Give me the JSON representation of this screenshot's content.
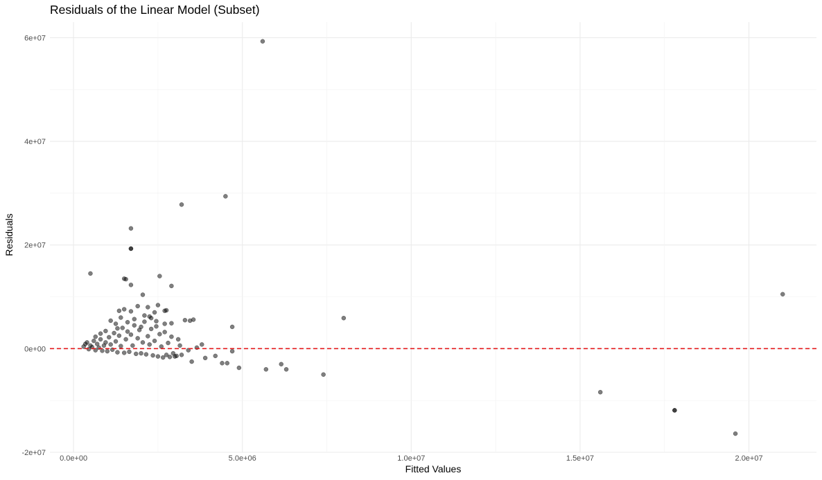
{
  "chart_data": {
    "type": "scatter",
    "title": "Residuals of the Linear Model (Subset)",
    "xlabel": "Fitted Values",
    "ylabel": "Residuals",
    "xlim": [
      -700000,
      22000000
    ],
    "ylim": [
      -20000000,
      63000000
    ],
    "x_ticks": [
      {
        "value": 0,
        "label": "0.0e+00"
      },
      {
        "value": 5000000,
        "label": "5.0e+06"
      },
      {
        "value": 10000000,
        "label": "1.0e+07"
      },
      {
        "value": 15000000,
        "label": "1.5e+07"
      },
      {
        "value": 20000000,
        "label": "2.0e+07"
      }
    ],
    "y_ticks": [
      {
        "value": -20000000,
        "label": "-2e+07"
      },
      {
        "value": 0,
        "label": "0e+00"
      },
      {
        "value": 20000000,
        "label": "2e+07"
      },
      {
        "value": 40000000,
        "label": "4e+07"
      },
      {
        "value": 60000000,
        "label": "6e+07"
      }
    ],
    "grid": true,
    "reference_line": {
      "y": 0,
      "style": "dashed",
      "color": "#e41a1c"
    },
    "point_color": "#000000",
    "point_opacity": 0.5,
    "points": [
      [
        5600000,
        59300000
      ],
      [
        4500000,
        29400000
      ],
      [
        3200000,
        27800000
      ],
      [
        1700000,
        23200000
      ],
      [
        1700000,
        19300000
      ],
      [
        1700000,
        19300000
      ],
      [
        500000,
        14500000
      ],
      [
        1500000,
        13500000
      ],
      [
        1550000,
        13400000
      ],
      [
        2550000,
        14000000
      ],
      [
        1700000,
        12300000
      ],
      [
        2900000,
        12100000
      ],
      [
        21000000,
        10500000
      ],
      [
        2050000,
        10400000
      ],
      [
        8000000,
        5900000
      ],
      [
        4700000,
        4200000
      ],
      [
        3300000,
        5500000
      ],
      [
        3450000,
        5400000
      ],
      [
        3550000,
        5600000
      ],
      [
        2750000,
        7400000
      ],
      [
        2700000,
        7300000
      ],
      [
        2500000,
        8400000
      ],
      [
        2200000,
        8000000
      ],
      [
        1900000,
        8200000
      ],
      [
        1350000,
        7300000
      ],
      [
        1500000,
        7600000
      ],
      [
        2400000,
        7000000
      ],
      [
        2100000,
        6400000
      ],
      [
        2300000,
        5900000
      ],
      [
        1700000,
        7200000
      ],
      [
        2700000,
        4800000
      ],
      [
        2900000,
        4900000
      ],
      [
        3100000,
        1800000
      ],
      [
        3800000,
        800000
      ],
      [
        3650000,
        200000
      ],
      [
        3400000,
        -300000
      ],
      [
        3500000,
        -2500000
      ],
      [
        3000000,
        -1500000
      ],
      [
        3200000,
        -1200000
      ],
      [
        3900000,
        -1800000
      ],
      [
        4200000,
        -1400000
      ],
      [
        4400000,
        -2800000
      ],
      [
        4550000,
        -2800000
      ],
      [
        4700000,
        -500000
      ],
      [
        4900000,
        -3700000
      ],
      [
        5700000,
        -4000000
      ],
      [
        6150000,
        -3000000
      ],
      [
        6300000,
        -4000000
      ],
      [
        7400000,
        -5000000
      ],
      [
        15600000,
        -8400000
      ],
      [
        17800000,
        -11900000
      ],
      [
        17800000,
        -11900000
      ],
      [
        19600000,
        -16400000
      ],
      [
        300000,
        400000
      ],
      [
        350000,
        900000
      ],
      [
        400000,
        1200000
      ],
      [
        450000,
        -100000
      ],
      [
        500000,
        600000
      ],
      [
        550000,
        300000
      ],
      [
        600000,
        1500000
      ],
      [
        650000,
        -300000
      ],
      [
        700000,
        900000
      ],
      [
        750000,
        200000
      ],
      [
        800000,
        1800000
      ],
      [
        850000,
        -400000
      ],
      [
        900000,
        600000
      ],
      [
        950000,
        1200000
      ],
      [
        1000000,
        -500000
      ],
      [
        1050000,
        2200000
      ],
      [
        1100000,
        800000
      ],
      [
        1150000,
        -200000
      ],
      [
        1200000,
        3000000
      ],
      [
        1250000,
        1400000
      ],
      [
        1300000,
        -700000
      ],
      [
        1350000,
        2500000
      ],
      [
        1400000,
        500000
      ],
      [
        1450000,
        4000000
      ],
      [
        1500000,
        -800000
      ],
      [
        1550000,
        1800000
      ],
      [
        1600000,
        3300000
      ],
      [
        1650000,
        -600000
      ],
      [
        1700000,
        2700000
      ],
      [
        1750000,
        600000
      ],
      [
        1800000,
        4500000
      ],
      [
        1850000,
        -1000000
      ],
      [
        1900000,
        2000000
      ],
      [
        1950000,
        3600000
      ],
      [
        2000000,
        -900000
      ],
      [
        2050000,
        1200000
      ],
      [
        2100000,
        5200000
      ],
      [
        2150000,
        -1100000
      ],
      [
        2200000,
        2400000
      ],
      [
        2250000,
        800000
      ],
      [
        2300000,
        3800000
      ],
      [
        2350000,
        -1300000
      ],
      [
        2400000,
        1500000
      ],
      [
        2450000,
        4300000
      ],
      [
        2500000,
        -1500000
      ],
      [
        2550000,
        2800000
      ],
      [
        2600000,
        400000
      ],
      [
        2650000,
        -1700000
      ],
      [
        2700000,
        3200000
      ],
      [
        2750000,
        -1200000
      ],
      [
        2800000,
        1100000
      ],
      [
        2850000,
        -1600000
      ],
      [
        2900000,
        2300000
      ],
      [
        2950000,
        -900000
      ],
      [
        3050000,
        -1400000
      ],
      [
        3150000,
        600000
      ],
      [
        1100000,
        5400000
      ],
      [
        1250000,
        4800000
      ],
      [
        1400000,
        6000000
      ],
      [
        1600000,
        5100000
      ],
      [
        1800000,
        5700000
      ],
      [
        2000000,
        4200000
      ],
      [
        1300000,
        3900000
      ],
      [
        950000,
        3400000
      ],
      [
        800000,
        2900000
      ],
      [
        650000,
        2300000
      ],
      [
        2250000,
        6200000
      ],
      [
        2450000,
        5300000
      ]
    ]
  }
}
